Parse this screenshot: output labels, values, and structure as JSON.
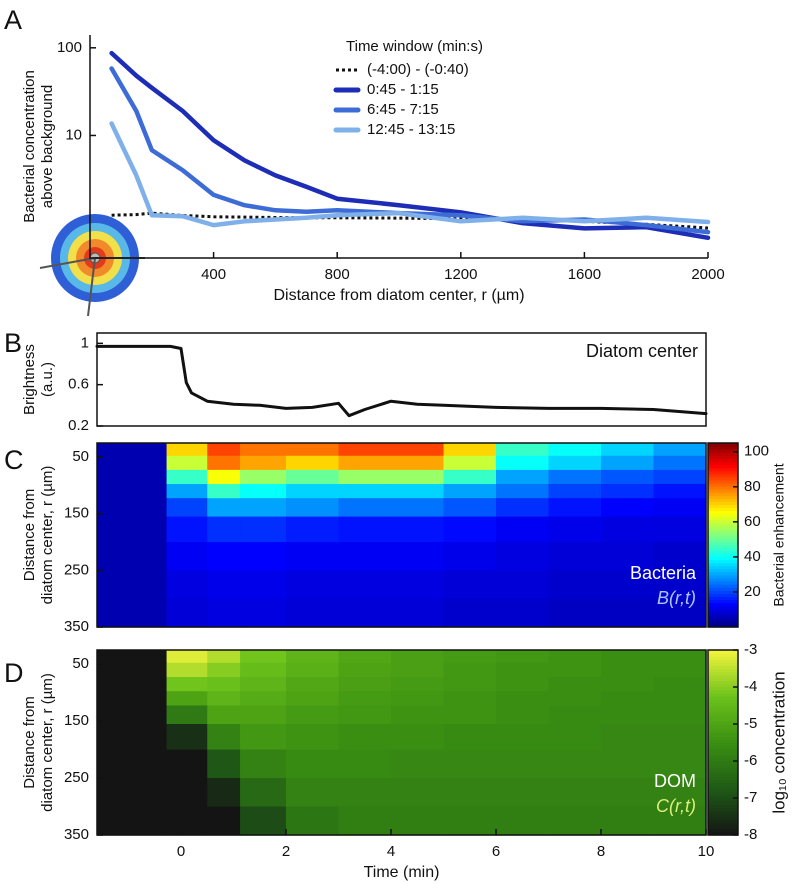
{
  "chart_data": [
    {
      "type": "line",
      "panel": "A",
      "y_label": [
        "Bacterial concentration",
        "above background"
      ],
      "x_label": "Distance from diatom center, r (µm)",
      "legend_title": "Time window (min:s)",
      "legend": "top",
      "x": [
        70,
        150,
        200,
        300,
        400,
        500,
        600,
        700,
        800,
        1000,
        1200,
        1400,
        1600,
        1800,
        2000
      ],
      "series": [
        {
          "name": "(-4:00) - (-0:40)",
          "color": "#111111",
          "style": "dotted",
          "values": [
            1.23,
            1.25,
            1.3,
            1.22,
            1.18,
            1.17,
            1.16,
            1.15,
            1.15,
            1.14,
            1.12,
            1.1,
            1.05,
            0.97,
            0.88
          ]
        },
        {
          "name": "0:45 - 1:15",
          "color": "#1d2db5",
          "values": [
            87,
            48,
            35,
            19,
            8.8,
            5.2,
            3.5,
            2.6,
            1.9,
            1.6,
            1.33,
            1.0,
            0.87,
            0.9,
            0.68
          ]
        },
        {
          "name": "6:45 - 7:15",
          "color": "#3d6cd6",
          "values": [
            58,
            19,
            6.8,
            4,
            2.1,
            1.6,
            1.4,
            1.35,
            1.4,
            1.3,
            1.23,
            1.05,
            1.1,
            0.95,
            0.79
          ]
        },
        {
          "name": "12:45 - 13:15",
          "color": "#7fb0ea",
          "values": [
            13.7,
            3.5,
            1.23,
            1.2,
            0.95,
            1.05,
            1.1,
            1.15,
            1.23,
            1.3,
            1.05,
            1.15,
            1.05,
            1.15,
            1.03
          ]
        }
      ],
      "xlim": [
        0,
        2000
      ],
      "xticks": [
        400,
        800,
        1200,
        1600,
        2000
      ],
      "ylim": [
        0.4,
        140
      ],
      "yticks": [
        10,
        100
      ],
      "y_log": true
    },
    {
      "type": "line",
      "panel": "B",
      "y_label": [
        "Brightness",
        "(a.u.)"
      ],
      "annotation": "Diatom center",
      "x": [
        -1.6,
        -0.2,
        0,
        0.1,
        0.2,
        0.5,
        1,
        1.5,
        2,
        2.5,
        3,
        3.2,
        3.5,
        4,
        4.5,
        5,
        6,
        7,
        8,
        9,
        10
      ],
      "series": [
        {
          "color": "#111111",
          "values": [
            0.97,
            0.97,
            0.95,
            0.62,
            0.52,
            0.44,
            0.41,
            0.4,
            0.37,
            0.38,
            0.42,
            0.3,
            0.36,
            0.44,
            0.41,
            0.4,
            0.38,
            0.37,
            0.37,
            0.36,
            0.32
          ]
        }
      ],
      "xlim": [
        -1.6,
        10
      ],
      "ylim": [
        0.2,
        1.1
      ],
      "yticks": [
        0.2,
        0.6,
        1
      ]
    },
    {
      "type": "heatmap",
      "panel": "C",
      "y_label": [
        "Distance from",
        "diatom center, r (µm)"
      ],
      "annotation": [
        "Bacteria",
        "B(r,t)"
      ],
      "x": [
        -0.8,
        0.25,
        0.75,
        1.5,
        2.5,
        3.5,
        4.5,
        5.5,
        6.5,
        7.5,
        8.5,
        9.5
      ],
      "y": [
        35,
        60,
        85,
        110,
        135,
        175,
        225,
        275,
        325
      ],
      "z": [
        [
          5,
          70,
          85,
          80,
          80,
          85,
          85,
          70,
          45,
          40,
          35,
          30
        ],
        [
          5,
          60,
          80,
          75,
          70,
          75,
          75,
          60,
          40,
          35,
          30,
          25
        ],
        [
          5,
          45,
          65,
          55,
          50,
          55,
          55,
          45,
          30,
          25,
          22,
          20
        ],
        [
          5,
          30,
          45,
          40,
          35,
          35,
          35,
          30,
          25,
          20,
          18,
          15
        ],
        [
          5,
          20,
          30,
          30,
          28,
          25,
          25,
          22,
          18,
          15,
          13,
          12
        ],
        [
          5,
          15,
          18,
          18,
          16,
          15,
          15,
          14,
          12,
          11,
          10,
          10
        ],
        [
          5,
          12,
          13,
          13,
          12,
          12,
          12,
          11,
          10,
          9,
          9,
          8
        ],
        [
          5,
          10,
          11,
          11,
          10,
          10,
          10,
          9,
          9,
          8,
          8,
          8
        ],
        [
          5,
          9,
          10,
          10,
          9,
          9,
          9,
          8,
          8,
          7,
          7,
          7
        ]
      ],
      "xlim": [
        -1.6,
        10
      ],
      "ylim": [
        25,
        350
      ],
      "y_inverted": true,
      "yticks": [
        50,
        150,
        250,
        350
      ],
      "colormap": "jet",
      "clim": [
        0,
        105
      ],
      "cticks": [
        20,
        40,
        60,
        80,
        100
      ],
      "colorbar_label": "Bacterial enhancement"
    },
    {
      "type": "heatmap",
      "panel": "D",
      "y_label": [
        "Distance from",
        "diatom center, r (µm)"
      ],
      "annotation": [
        "DOM",
        "C(r,t)"
      ],
      "x_label": "Time (min)",
      "x": [
        -0.8,
        0.25,
        0.75,
        1.5,
        2.5,
        3.5,
        4.5,
        5.5,
        6.5,
        7.5,
        8.5,
        9.5
      ],
      "y": [
        35,
        60,
        85,
        110,
        135,
        175,
        225,
        275,
        325
      ],
      "z": [
        [
          -8,
          -3.2,
          -3.6,
          -4.2,
          -4.6,
          -4.9,
          -5.1,
          -5.2,
          -5.3,
          -5.4,
          -5.5,
          -5.5
        ],
        [
          -8,
          -3.6,
          -4.0,
          -4.4,
          -4.7,
          -5.0,
          -5.1,
          -5.3,
          -5.4,
          -5.4,
          -5.5,
          -5.5
        ],
        [
          -8,
          -4.2,
          -4.3,
          -4.6,
          -4.9,
          -5.1,
          -5.2,
          -5.3,
          -5.4,
          -5.5,
          -5.5,
          -5.6
        ],
        [
          -8,
          -5.0,
          -4.6,
          -4.8,
          -5.0,
          -5.2,
          -5.3,
          -5.4,
          -5.5,
          -5.5,
          -5.6,
          -5.6
        ],
        [
          -8,
          -6.0,
          -5.0,
          -5.0,
          -5.2,
          -5.3,
          -5.4,
          -5.4,
          -5.5,
          -5.6,
          -5.6,
          -5.6
        ],
        [
          -8,
          -7.5,
          -5.8,
          -5.3,
          -5.4,
          -5.5,
          -5.5,
          -5.6,
          -5.6,
          -5.6,
          -5.7,
          -5.7
        ],
        [
          -8,
          -8,
          -6.8,
          -5.8,
          -5.6,
          -5.6,
          -5.7,
          -5.7,
          -5.7,
          -5.7,
          -5.7,
          -5.7
        ],
        [
          -8,
          -8,
          -7.6,
          -6.4,
          -5.8,
          -5.8,
          -5.8,
          -5.8,
          -5.8,
          -5.8,
          -5.8,
          -5.8
        ],
        [
          -8,
          -8,
          -8,
          -7.0,
          -6.1,
          -5.9,
          -5.9,
          -5.9,
          -5.9,
          -5.9,
          -5.9,
          -5.9
        ]
      ],
      "xlim": [
        -1.6,
        10
      ],
      "xticks": [
        0,
        2,
        4,
        6,
        8,
        10
      ],
      "ylim": [
        25,
        350
      ],
      "y_inverted": true,
      "yticks": [
        50,
        150,
        250,
        350
      ],
      "colormap": [
        "#141414",
        "#1f5a16",
        "#3a8f12",
        "#6cc21a",
        "#f4f53c"
      ],
      "clim": [
        -8,
        -3
      ],
      "cticks": [
        -3,
        -4,
        -5,
        -6,
        -7,
        -8
      ],
      "colorbar_label": "log₁₀ concentration"
    }
  ]
}
